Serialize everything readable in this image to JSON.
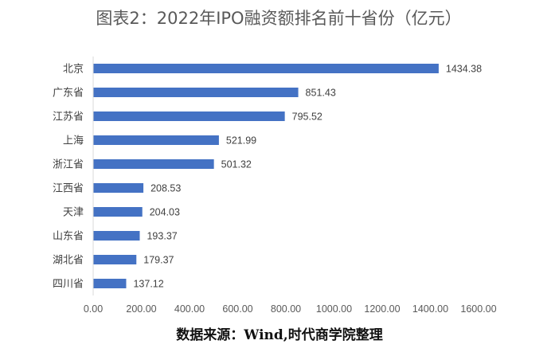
{
  "title": "图表2：2022年IPO融资额排名前十省份（亿元）",
  "source": "数据来源：Wind,时代商学院整理",
  "colors": {
    "bar": "#4472C4",
    "axis": "#D9D9D9",
    "text": "#404040"
  },
  "chart_data": {
    "type": "bar",
    "orientation": "horizontal",
    "title": "图表2：2022年IPO融资额排名前十省份（亿元）",
    "categories": [
      "北京",
      "广东省",
      "江苏省",
      "上海",
      "浙江省",
      "江西省",
      "天津",
      "山东省",
      "湖北省",
      "四川省"
    ],
    "values": [
      1434.38,
      851.43,
      795.52,
      521.99,
      501.32,
      208.53,
      204.03,
      193.37,
      179.37,
      137.12
    ],
    "value_labels": [
      "1434.38",
      "851.43",
      "795.52",
      "521.99",
      "501.32",
      "208.53",
      "204.03",
      "193.37",
      "179.37",
      "137.12"
    ],
    "xlim": [
      0,
      1600
    ],
    "xticks": [
      "0.00",
      "200.00",
      "400.00",
      "600.00",
      "800.00",
      "1000.00",
      "1200.00",
      "1400.00",
      "1600.00"
    ],
    "grid": false,
    "legend": "none"
  }
}
